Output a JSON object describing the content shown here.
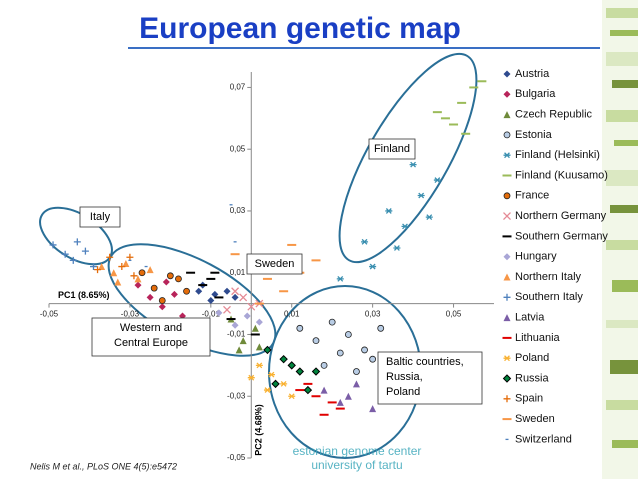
{
  "chart_data": {
    "type": "scatter",
    "title": "European genetic map",
    "x_label": "PC1 (8.65%)",
    "y_label": "PC2 (4.68%)",
    "xlim": [
      -0.05,
      0.06
    ],
    "ylim": [
      -0.05,
      0.075
    ],
    "xticks": [
      {
        "value": -0.05,
        "label": "-0,05"
      },
      {
        "value": -0.03,
        "label": "-0,03"
      },
      {
        "value": -0.01,
        "label": "-0,01"
      },
      {
        "value": 0.01,
        "label": "0,01"
      },
      {
        "value": 0.03,
        "label": "0,03"
      },
      {
        "value": 0.05,
        "label": "0,05"
      }
    ],
    "yticks": [
      {
        "value": -0.05,
        "label": "-0,05"
      },
      {
        "value": -0.03,
        "label": "-0,03"
      },
      {
        "value": -0.01,
        "label": "-0,01"
      },
      {
        "value": 0.01,
        "label": "0,01"
      },
      {
        "value": 0.03,
        "label": "0,03"
      },
      {
        "value": 0.05,
        "label": "0,05"
      },
      {
        "value": 0.07,
        "label": "0,07"
      }
    ],
    "legend": "right",
    "series": [
      {
        "name": "Austria",
        "color": "#2f4b8f",
        "marker": "diamond",
        "x": [
          -0.012,
          -0.009,
          -0.006,
          -0.01,
          -0.004,
          -0.013
        ],
        "values": [
          0.006,
          0.003,
          0.004,
          0.001,
          0.002,
          0.004
        ]
      },
      {
        "name": "Bulgaria",
        "color": "#b8245a",
        "marker": "diamond",
        "x": [
          -0.028,
          -0.025,
          -0.022,
          -0.019,
          -0.017,
          -0.021
        ],
        "values": [
          0.006,
          0.002,
          -0.001,
          0.003,
          -0.004,
          0.007
        ]
      },
      {
        "name": "Czech Republic",
        "color": "#6f8a3a",
        "marker": "triangle",
        "x": [
          -0.005,
          -0.002,
          0.001,
          -0.003,
          0.002
        ],
        "values": [
          -0.005,
          -0.012,
          -0.008,
          -0.015,
          -0.014
        ]
      },
      {
        "name": "Estonia",
        "color": "#b9cde5",
        "marker": "circle",
        "x": [
          0.012,
          0.016,
          0.02,
          0.024,
          0.028,
          0.032,
          0.018,
          0.026,
          0.03,
          0.022
        ],
        "values": [
          -0.008,
          -0.012,
          -0.006,
          -0.01,
          -0.015,
          -0.008,
          -0.02,
          -0.022,
          -0.018,
          -0.016
        ]
      },
      {
        "name": "Finland (Helsinki)",
        "color": "#3a8fb0",
        "marker": "asterisk",
        "x": [
          0.022,
          0.028,
          0.034,
          0.038,
          0.042,
          0.046,
          0.036,
          0.03,
          0.044,
          0.04
        ],
        "values": [
          0.008,
          0.02,
          0.03,
          0.025,
          0.035,
          0.04,
          0.018,
          0.012,
          0.028,
          0.045
        ]
      },
      {
        "name": "Finland (Kuusamo)",
        "color": "#9bbb59",
        "marker": "dash",
        "x": [
          0.048,
          0.052,
          0.055,
          0.05,
          0.057,
          0.053,
          0.046
        ],
        "values": [
          0.06,
          0.065,
          0.07,
          0.058,
          0.072,
          0.055,
          0.062
        ]
      },
      {
        "name": "France",
        "color": "#e46c0a",
        "marker": "circle",
        "x": [
          -0.027,
          -0.024,
          -0.02,
          -0.016,
          -0.022,
          -0.018
        ],
        "values": [
          0.01,
          0.005,
          0.009,
          0.004,
          0.001,
          0.008
        ]
      },
      {
        "name": "Northern Germany",
        "color": "#e58a95",
        "marker": "x",
        "x": [
          -0.002,
          0.0,
          -0.004,
          0.002,
          -0.006
        ],
        "values": [
          0.002,
          -0.001,
          0.004,
          0.0,
          -0.002
        ]
      },
      {
        "name": "Southern Germany",
        "color": "#000000",
        "marker": "dash",
        "x": [
          -0.015,
          -0.012,
          -0.01,
          -0.008,
          -0.005,
          0.001,
          -0.009
        ],
        "values": [
          0.01,
          0.006,
          0.008,
          0.002,
          -0.005,
          -0.01,
          0.01
        ]
      },
      {
        "name": "Hungary",
        "color": "#a9a6d6",
        "marker": "diamond",
        "x": [
          -0.008,
          -0.004,
          -0.001,
          0.002
        ],
        "values": [
          -0.003,
          -0.007,
          -0.004,
          -0.006
        ]
      },
      {
        "name": "Northern Italy",
        "color": "#f79646",
        "marker": "triangle",
        "x": [
          -0.037,
          -0.034,
          -0.031,
          -0.028,
          -0.025,
          -0.033
        ],
        "values": [
          0.012,
          0.01,
          0.013,
          0.008,
          0.011,
          0.007
        ]
      },
      {
        "name": "Southern Italy",
        "color": "#4f81bd",
        "marker": "plus",
        "x": [
          -0.049,
          -0.046,
          -0.043,
          -0.044,
          -0.041,
          -0.039
        ],
        "values": [
          0.019,
          0.016,
          0.02,
          0.014,
          0.017,
          0.012
        ]
      },
      {
        "name": "Latvia",
        "color": "#7b5ea7",
        "marker": "triangle",
        "x": [
          0.018,
          0.022,
          0.026,
          0.03,
          0.024
        ],
        "values": [
          -0.028,
          -0.032,
          -0.026,
          -0.034,
          -0.03
        ]
      },
      {
        "name": "Lithuania",
        "color": "#e00000",
        "marker": "dash",
        "x": [
          0.012,
          0.016,
          0.02,
          0.018,
          0.014,
          0.022
        ],
        "values": [
          -0.028,
          -0.03,
          -0.032,
          -0.036,
          -0.026,
          -0.034
        ]
      },
      {
        "name": "Poland",
        "color": "#f9b233",
        "marker": "asterisk",
        "x": [
          0.002,
          0.005,
          0.008,
          0.004,
          0.01,
          0.0
        ],
        "values": [
          -0.02,
          -0.023,
          -0.026,
          -0.028,
          -0.03,
          -0.024
        ]
      },
      {
        "name": "Russia",
        "color": "#00843d",
        "marker": "diamond",
        "x": [
          0.004,
          0.008,
          0.012,
          0.006,
          0.01,
          0.014,
          0.016
        ],
        "values": [
          -0.015,
          -0.018,
          -0.022,
          -0.026,
          -0.02,
          -0.028,
          -0.022
        ]
      },
      {
        "name": "Spain",
        "color": "#e46c0a",
        "marker": "plus",
        "x": [
          -0.035,
          -0.032,
          -0.029,
          -0.03,
          -0.038
        ],
        "values": [
          0.015,
          0.012,
          0.009,
          0.015,
          0.011
        ]
      },
      {
        "name": "Sweden",
        "color": "#f79646",
        "marker": "dash",
        "x": [
          -0.004,
          0.0,
          0.004,
          0.008,
          0.012,
          0.016,
          0.01,
          0.002
        ],
        "values": [
          0.016,
          0.012,
          0.008,
          0.004,
          0.01,
          0.014,
          0.019,
          0.0
        ]
      },
      {
        "name": "Switzerland",
        "color": "#4f81bd",
        "marker": "smalldash",
        "x": [
          -0.03,
          -0.026,
          -0.038,
          -0.005,
          -0.004
        ],
        "values": [
          0.014,
          0.012,
          0.03,
          0.032,
          0.02
        ]
      }
    ],
    "annotations": [
      "Italy",
      "Sweden",
      "Finland",
      [
        "Western and",
        "Central Europe"
      ],
      [
        "Baltic countries,",
        "Russia,",
        "Poland"
      ]
    ],
    "source": "Nelis M et al., PLoS ONE 4(5):e5472",
    "logo": [
      "estonian genome center",
      "university of tartu"
    ]
  }
}
